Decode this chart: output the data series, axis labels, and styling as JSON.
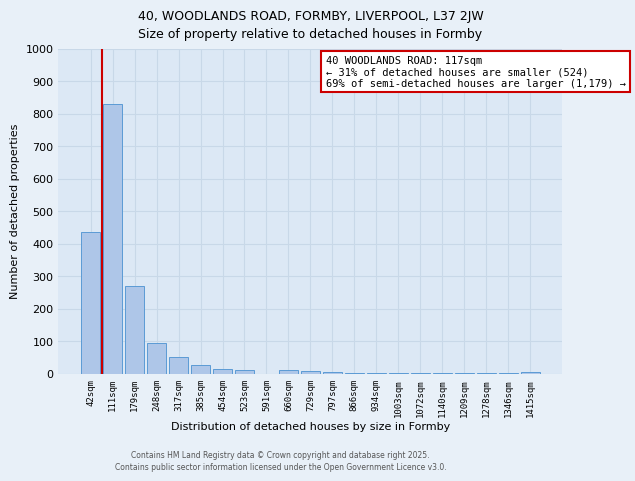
{
  "title1": "40, WOODLANDS ROAD, FORMBY, LIVERPOOL, L37 2JW",
  "title2": "Size of property relative to detached houses in Formby",
  "xlabel": "Distribution of detached houses by size in Formby",
  "ylabel": "Number of detached properties",
  "bin_labels": [
    "42sqm",
    "111sqm",
    "179sqm",
    "248sqm",
    "317sqm",
    "385sqm",
    "454sqm",
    "523sqm",
    "591sqm",
    "660sqm",
    "729sqm",
    "797sqm",
    "866sqm",
    "934sqm",
    "1003sqm",
    "1072sqm",
    "1140sqm",
    "1209sqm",
    "1278sqm",
    "1346sqm",
    "1415sqm"
  ],
  "bar_values": [
    435,
    830,
    270,
    95,
    50,
    25,
    15,
    10,
    0,
    10,
    8,
    5,
    3,
    2,
    2,
    1,
    1,
    1,
    1,
    1,
    5
  ],
  "bar_color": "#aec6e8",
  "bar_edge_color": "#5b9bd5",
  "grid_color": "#c8d8e8",
  "bg_color": "#dce8f5",
  "fig_color": "#e8f0f8",
  "vline_color": "#cc0000",
  "annotation_title": "40 WOODLANDS ROAD: 117sqm",
  "annotation_line2": "← 31% of detached houses are smaller (524)",
  "annotation_line3": "69% of semi-detached houses are larger (1,179) →",
  "annotation_box_color": "#cc0000",
  "ylim": [
    0,
    1000
  ],
  "yticks": [
    0,
    100,
    200,
    300,
    400,
    500,
    600,
    700,
    800,
    900,
    1000
  ],
  "footer1": "Contains HM Land Registry data © Crown copyright and database right 2025.",
  "footer2": "Contains public sector information licensed under the Open Government Licence v3.0."
}
